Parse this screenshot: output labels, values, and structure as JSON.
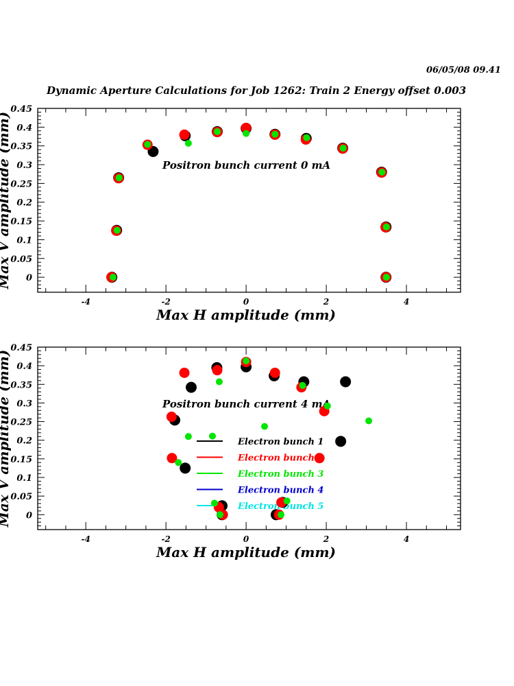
{
  "header": {
    "timestamp": "06/05/08   09.41",
    "title": "Dynamic Aperture Calculations for Job 1262:  Train 2   Energy offset  0.003"
  },
  "colors": {
    "bunch1": "#000000",
    "bunch2": "#ff0000",
    "bunch3": "#00e600",
    "bunch4": "#0000cc",
    "bunch5": "#00e5e5"
  },
  "chart_data": [
    {
      "type": "scatter",
      "title": "",
      "annotation": "Positron bunch current  0 mA",
      "xlabel": "Max H amplitude (mm)",
      "ylabel": "Max V amplitude (mm)",
      "xlim": [
        -5.2,
        5.35
      ],
      "ylim": [
        -0.04,
        0.45
      ],
      "xticks": [
        "-4",
        "-2",
        "0",
        "2",
        "4"
      ],
      "xtick_values": [
        -4,
        -2,
        0,
        2,
        4
      ],
      "yticks": [
        "0",
        "0.05",
        "0.1",
        "0.15",
        "0.2",
        "0.25",
        "0.3",
        "0.35",
        "0.4",
        "0.45"
      ],
      "ytick_values": [
        0,
        0.05,
        0.1,
        0.15,
        0.2,
        0.25,
        0.3,
        0.35,
        0.4,
        0.45
      ],
      "series": [
        {
          "name": "Electron bunch 1",
          "color": "#000000",
          "points": [
            [
              -3.35,
              0
            ],
            [
              -3.23,
              0.125
            ],
            [
              -3.18,
              0.265
            ],
            [
              -2.32,
              0.335
            ],
            [
              -1.52,
              0.377
            ],
            [
              -0.72,
              0.388
            ],
            [
              0,
              0.397
            ],
            [
              0.72,
              0.381
            ],
            [
              1.5,
              0.37
            ],
            [
              2.41,
              0.344
            ],
            [
              3.38,
              0.28
            ],
            [
              3.49,
              0.134
            ],
            [
              3.49,
              0
            ]
          ]
        },
        {
          "name": "Electron bunch 2",
          "color": "#ff0000",
          "points": [
            [
              -3.36,
              0
            ],
            [
              -3.24,
              0.124
            ],
            [
              -3.18,
              0.264
            ],
            [
              -2.46,
              0.353
            ],
            [
              -1.54,
              0.38
            ],
            [
              -0.72,
              0.387
            ],
            [
              0,
              0.398
            ],
            [
              0.72,
              0.38
            ],
            [
              1.49,
              0.367
            ],
            [
              2.41,
              0.343
            ],
            [
              3.38,
              0.279
            ],
            [
              3.48,
              0.133
            ],
            [
              3.49,
              0
            ]
          ]
        },
        {
          "name": "Electron bunch 3",
          "color": "#00e600",
          "points": [
            [
              -3.32,
              0
            ],
            [
              -3.22,
              0.125
            ],
            [
              -3.17,
              0.265
            ],
            [
              -2.46,
              0.354
            ],
            [
              -1.44,
              0.357
            ],
            [
              -0.72,
              0.388
            ],
            [
              0,
              0.383
            ],
            [
              0.72,
              0.381
            ],
            [
              1.51,
              0.372
            ],
            [
              2.42,
              0.344
            ],
            [
              3.39,
              0.28
            ],
            [
              3.5,
              0.134
            ],
            [
              3.5,
              0
            ]
          ]
        }
      ]
    },
    {
      "type": "scatter",
      "title": "",
      "annotation": "Positron bunch current  4 mA",
      "xlabel": "Max H amplitude (mm)",
      "ylabel": "Max V amplitude (mm)",
      "xlim": [
        -5.2,
        5.35
      ],
      "ylim": [
        -0.04,
        0.45
      ],
      "xticks": [
        "-4",
        "-2",
        "0",
        "2",
        "4"
      ],
      "xtick_values": [
        -4,
        -2,
        0,
        2,
        4
      ],
      "yticks": [
        "0",
        "0.05",
        "0.1",
        "0.15",
        "0.2",
        "0.25",
        "0.3",
        "0.35",
        "0.4",
        "0.45"
      ],
      "ytick_values": [
        0,
        0.05,
        0.1,
        0.15,
        0.2,
        0.25,
        0.3,
        0.35,
        0.4,
        0.45
      ],
      "legend": {
        "placement": "center",
        "entries": [
          "Electron bunch 1",
          "Electron bunch 2",
          "Electron bunch 3",
          "Electron bunch 4",
          "Electron bunch 5"
        ]
      },
      "series": [
        {
          "name": "Electron bunch 1",
          "color": "#000000",
          "points": [
            [
              -0.6,
              0
            ],
            [
              -0.6,
              0.024
            ],
            [
              -1.52,
              0.125
            ],
            [
              -1.78,
              0.254
            ],
            [
              -1.37,
              0.342
            ],
            [
              -0.73,
              0.395
            ],
            [
              0,
              0.397
            ],
            [
              0.7,
              0.373
            ],
            [
              1.44,
              0.357
            ],
            [
              2.48,
              0.357
            ],
            [
              2.36,
              0.197
            ],
            [
              0.91,
              0.033
            ],
            [
              0.75,
              0
            ]
          ]
        },
        {
          "name": "Electron bunch 2",
          "color": "#ff0000",
          "points": [
            [
              -0.58,
              0
            ],
            [
              -0.68,
              0.02
            ],
            [
              -1.85,
              0.152
            ],
            [
              -1.86,
              0.263
            ],
            [
              -1.54,
              0.381
            ],
            [
              -0.72,
              0.388
            ],
            [
              0,
              0.41
            ],
            [
              0.72,
              0.381
            ],
            [
              1.38,
              0.342
            ],
            [
              1.95,
              0.278
            ],
            [
              1.83,
              0.152
            ],
            [
              0.88,
              0.033
            ],
            [
              0.82,
              0
            ]
          ]
        },
        {
          "name": "Electron bunch 3",
          "color": "#00e600",
          "points": [
            [
              -0.65,
              0
            ],
            [
              -0.79,
              0.031
            ],
            [
              -1.69,
              0.14
            ],
            [
              -1.44,
              0.21
            ],
            [
              -0.84,
              0.211
            ],
            [
              -0.67,
              0.357
            ],
            [
              0,
              0.413
            ],
            [
              0.46,
              0.237
            ],
            [
              1.41,
              0.347
            ],
            [
              2.03,
              0.292
            ],
            [
              3.06,
              0.252
            ],
            [
              1.02,
              0.037
            ],
            [
              0.87,
              0
            ]
          ]
        },
        {
          "name": "Electron bunch 4",
          "color": "#0000cc",
          "points": []
        },
        {
          "name": "Electron bunch 5",
          "color": "#00e5e5",
          "points": []
        }
      ]
    }
  ]
}
